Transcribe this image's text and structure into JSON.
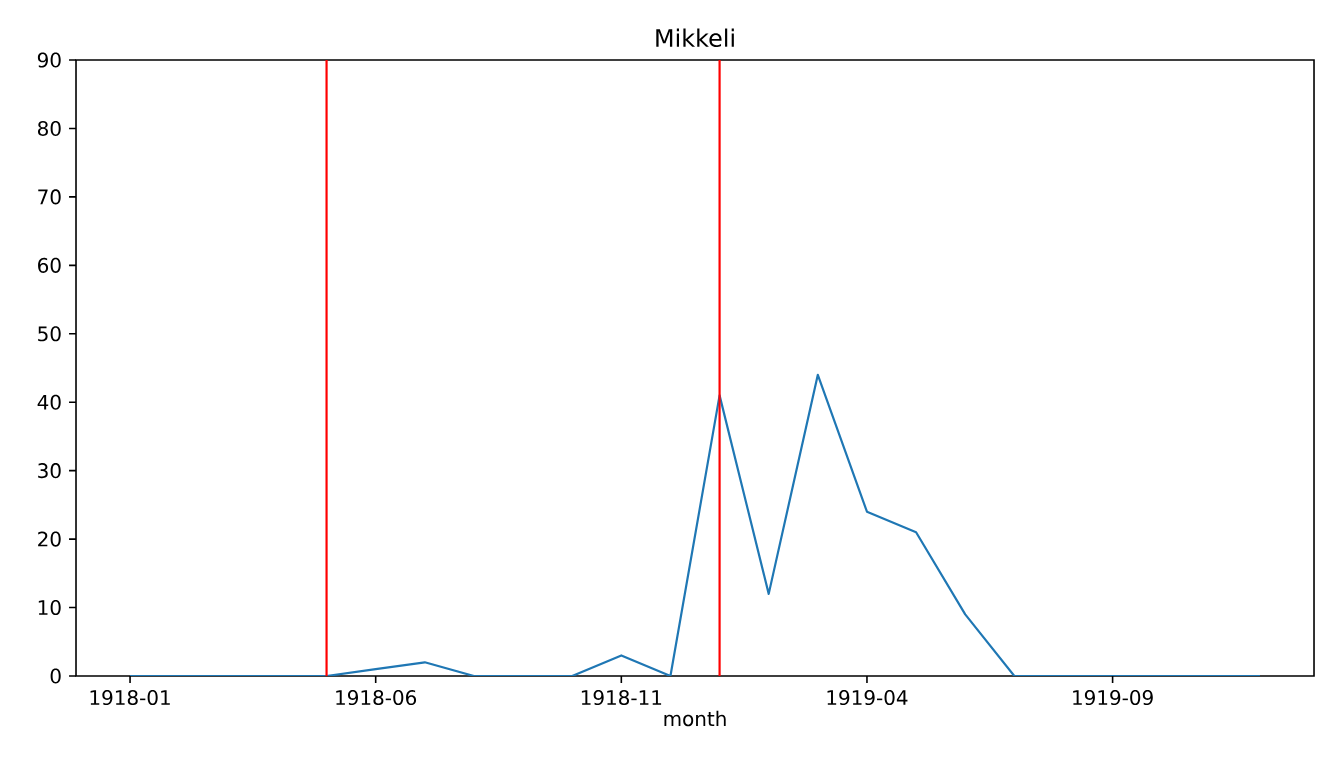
{
  "chart_data": {
    "type": "line",
    "title": "Mikkeli",
    "xlabel": "month",
    "x": [
      "1918-01",
      "1918-02",
      "1918-03",
      "1918-04",
      "1918-05",
      "1918-06",
      "1918-07",
      "1918-08",
      "1918-09",
      "1918-10",
      "1918-11",
      "1918-12",
      "1919-01",
      "1919-02",
      "1919-03",
      "1919-04",
      "1919-05",
      "1919-06",
      "1919-07",
      "1919-08",
      "1919-09",
      "1919-10",
      "1919-11",
      "1919-12"
    ],
    "series": [
      {
        "color": "#1f77b4",
        "values": [
          0,
          0,
          0,
          0,
          0,
          1,
          2,
          0,
          0,
          0,
          3,
          0,
          41,
          12,
          44,
          24,
          21,
          9,
          0,
          0,
          0,
          0,
          0,
          0
        ]
      }
    ],
    "xlim": [
      "1917-11-28",
      "1920-01-04"
    ],
    "ylim": [
      0,
      90
    ],
    "xticks": [
      "1918-01",
      "1918-06",
      "1918-11",
      "1919-04",
      "1919-09"
    ],
    "yticks": [
      0,
      10,
      20,
      30,
      40,
      50,
      60,
      70,
      80,
      90
    ],
    "ref_lines": [
      {
        "axis": "x",
        "value": "1918-05",
        "color": "#ff0000"
      },
      {
        "axis": "x",
        "value": "1919-01",
        "color": "#ff0000"
      }
    ],
    "grid": false,
    "marker": "none",
    "line_style": "solid"
  }
}
